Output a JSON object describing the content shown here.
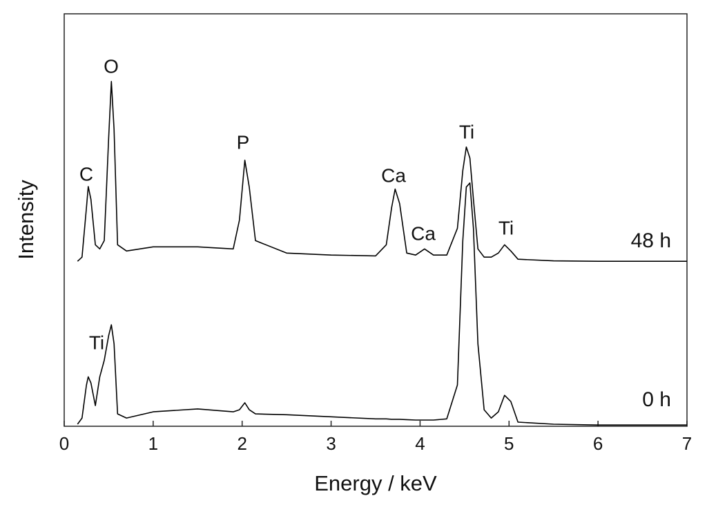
{
  "chart_data": {
    "type": "line",
    "x_label": "Energy / keV",
    "y_label": "Intensity",
    "x": [
      0.15,
      0.2,
      0.25,
      0.27,
      0.3,
      0.35,
      0.4,
      0.45,
      0.5,
      0.53,
      0.56,
      0.6,
      0.7,
      1.0,
      1.5,
      1.9,
      1.97,
      2.03,
      2.08,
      2.15,
      2.5,
      3.0,
      3.5,
      3.62,
      3.68,
      3.72,
      3.77,
      3.85,
      3.95,
      4.05,
      4.15,
      4.3,
      4.42,
      4.48,
      4.52,
      4.56,
      4.6,
      4.65,
      4.72,
      4.8,
      4.88,
      4.95,
      5.02,
      5.1,
      5.5,
      6.0,
      7.0
    ],
    "series": [
      {
        "name": "48 h",
        "color": "#000000",
        "values": [
          40,
          41,
          53,
          58.1,
          55,
          44,
          43,
          45,
          70,
          83.6,
          72,
          44,
          42.5,
          43.5,
          43.5,
          43,
          50,
          64.5,
          58,
          45,
          42,
          41.5,
          41.3,
          44,
          53,
          57.5,
          54,
          42,
          41.5,
          43,
          41.5,
          41.5,
          48,
          62,
          67.7,
          65,
          55,
          43,
          41,
          41,
          42,
          44,
          42.5,
          40.5,
          40.1,
          40,
          40
        ]
      },
      {
        "name": "0 h",
        "color": "#000000",
        "values": [
          0.5,
          2,
          10,
          12,
          10.5,
          5,
          12,
          16,
          22,
          24.6,
          20,
          3,
          2,
          3.5,
          4.2,
          3.5,
          4,
          5.7,
          4,
          3,
          2.8,
          2.3,
          1.8,
          1.8,
          1.7,
          1.7,
          1.7,
          1.6,
          1.5,
          1.5,
          1.5,
          1.8,
          10,
          45,
          58,
          59,
          48,
          20,
          4,
          2,
          3.5,
          7.5,
          6,
          1,
          0.5,
          0.3,
          0.3
        ]
      }
    ],
    "annotations": [
      "C",
      "O",
      "P",
      "Ca",
      "Ca",
      "Ti",
      "Ti",
      "Ti"
    ],
    "xlim": [
      0,
      7
    ],
    "xticks": [
      0,
      1,
      2,
      3,
      4,
      5,
      6,
      7
    ],
    "ylim": [
      0,
      100
    ]
  }
}
